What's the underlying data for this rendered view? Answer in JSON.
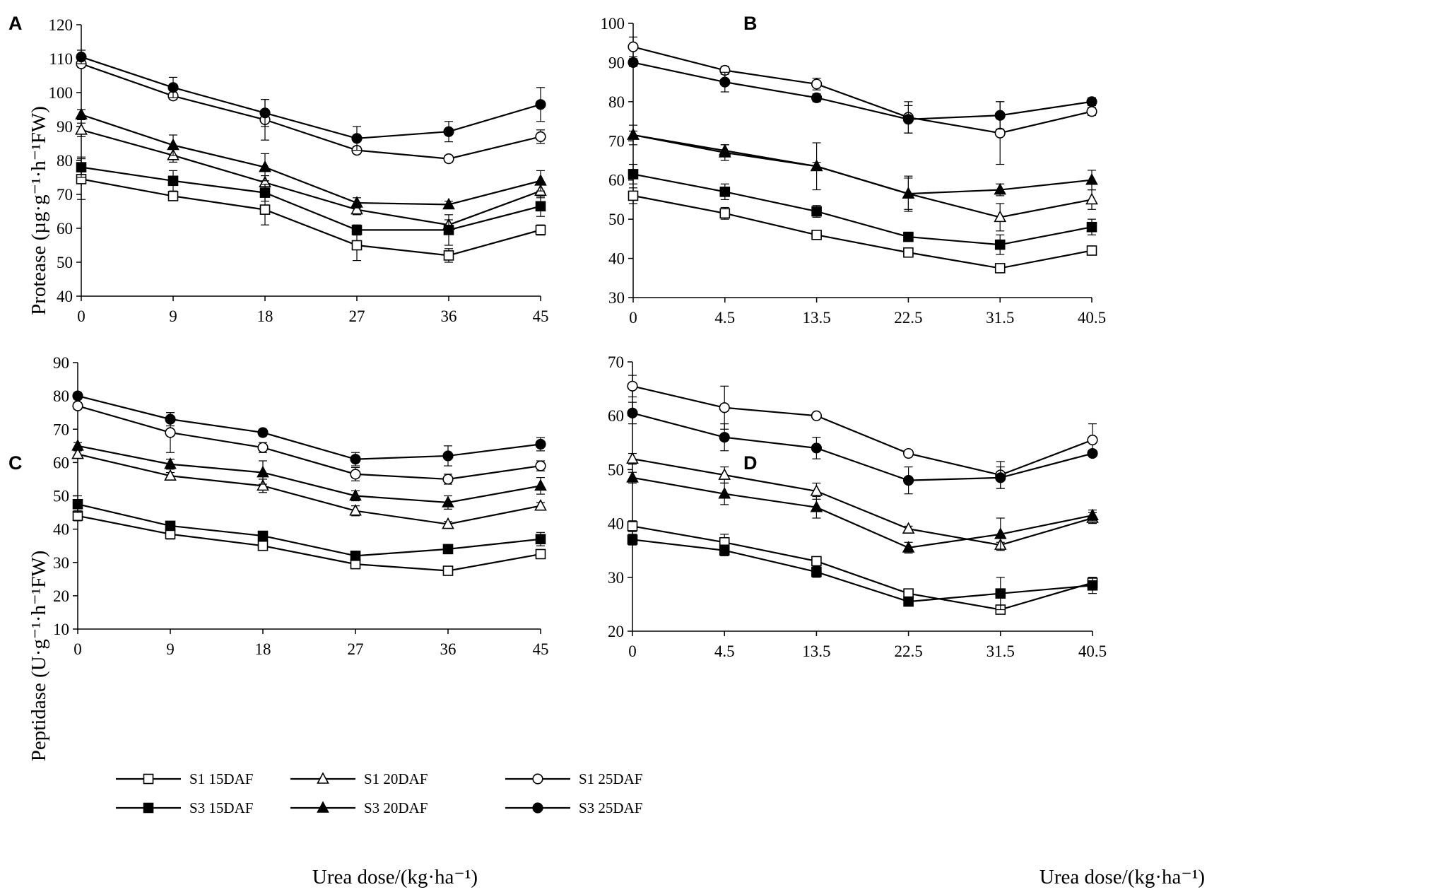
{
  "chart_data": [
    {
      "panel": "A",
      "type": "line",
      "x": [
        0,
        9,
        18,
        27,
        36,
        45
      ],
      "ylim": [
        40,
        120
      ],
      "yticks": [
        40,
        50,
        60,
        70,
        80,
        90,
        100,
        110,
        120
      ],
      "ylabel": "Protease (µg·g⁻¹·h⁻¹FW)",
      "xlabel": "",
      "series": [
        {
          "name": "S1 15DAF",
          "marker": "square",
          "filled": false,
          "values": [
            74.5,
            69.5,
            65.5,
            55.0,
            52.0,
            59.5
          ],
          "errors": [
            6.0,
            1.0,
            4.5,
            4.5,
            2.0,
            1.5
          ]
        },
        {
          "name": "S1 20DAF",
          "marker": "triangle",
          "filled": false,
          "values": [
            89.0,
            81.5,
            73.5,
            65.5,
            61.0,
            71.0
          ],
          "errors": [
            2.0,
            2.0,
            2.0,
            1.5,
            1.5,
            2.0
          ]
        },
        {
          "name": "S1 25DAF",
          "marker": "circle",
          "filled": false,
          "values": [
            108.5,
            99.0,
            92.0,
            83.0,
            80.5,
            87.0
          ],
          "errors": [
            1.0,
            1.0,
            6.0,
            1.0,
            1.0,
            2.0
          ]
        },
        {
          "name": "S3 15DAF",
          "marker": "square",
          "filled": true,
          "values": [
            78.0,
            74.0,
            70.5,
            59.5,
            59.5,
            66.5
          ],
          "errors": [
            3.0,
            3.0,
            2.5,
            1.5,
            4.5,
            3.0
          ]
        },
        {
          "name": "S3 20DAF",
          "marker": "triangle",
          "filled": true,
          "values": [
            93.5,
            84.5,
            78.0,
            67.5,
            67.0,
            74.0
          ],
          "errors": [
            1.5,
            3.0,
            4.0,
            1.5,
            1.0,
            3.0
          ]
        },
        {
          "name": "S3 25DAF",
          "marker": "circle",
          "filled": true,
          "values": [
            110.5,
            101.5,
            94.0,
            86.5,
            88.5,
            96.5
          ],
          "errors": [
            2.0,
            3.0,
            4.0,
            3.5,
            3.0,
            5.0
          ]
        }
      ]
    },
    {
      "panel": "B",
      "type": "line",
      "x": [
        0,
        4.5,
        13.5,
        22.5,
        31.5,
        40.5
      ],
      "ylim": [
        30,
        100
      ],
      "yticks": [
        30,
        40,
        50,
        60,
        70,
        80,
        90,
        100
      ],
      "ylabel": "",
      "xlabel": "",
      "series": [
        {
          "name": "S1 15DAF",
          "marker": "square",
          "filled": false,
          "values": [
            56.0,
            51.5,
            46.0,
            41.5,
            37.5,
            42.0
          ],
          "errors": [
            2.0,
            1.5,
            0.5,
            0.5,
            1.0,
            0.5
          ]
        },
        {
          "name": "S1 20DAF",
          "marker": "triangle",
          "filled": false,
          "values": [
            71.5,
            67.5,
            63.5,
            56.5,
            50.5,
            55.0
          ],
          "errors": [
            1.0,
            1.5,
            6.0,
            4.5,
            3.5,
            2.5
          ]
        },
        {
          "name": "S1 25DAF",
          "marker": "circle",
          "filled": false,
          "values": [
            94.0,
            88.0,
            84.5,
            76.0,
            72.0,
            77.5
          ],
          "errors": [
            2.5,
            1.0,
            1.5,
            4.0,
            8.0,
            1.0
          ]
        },
        {
          "name": "S3 15DAF",
          "marker": "square",
          "filled": true,
          "values": [
            61.5,
            57.0,
            52.0,
            45.5,
            43.5,
            48.0
          ],
          "errors": [
            2.5,
            2.0,
            1.5,
            0.5,
            2.5,
            2.0
          ]
        },
        {
          "name": "S3 20DAF",
          "marker": "triangle",
          "filled": true,
          "values": [
            71.5,
            67.0,
            63.5,
            56.5,
            57.5,
            60.0
          ],
          "errors": [
            2.5,
            2.0,
            1.0,
            4.0,
            1.5,
            2.5
          ]
        },
        {
          "name": "S3 25DAF",
          "marker": "circle",
          "filled": true,
          "values": [
            90.0,
            85.0,
            81.0,
            75.5,
            76.5,
            80.0
          ],
          "errors": [
            1.0,
            2.5,
            1.0,
            3.5,
            3.5,
            1.0
          ]
        }
      ]
    },
    {
      "panel": "C",
      "type": "line",
      "x": [
        0,
        9,
        18,
        27,
        36,
        45
      ],
      "ylim": [
        10,
        90
      ],
      "yticks": [
        10,
        20,
        30,
        40,
        50,
        60,
        70,
        80,
        90
      ],
      "ylabel": "Peptidase (U·g⁻¹·h⁻¹FW)",
      "xlabel": "Urea dose/(kg·ha⁻¹)",
      "series": [
        {
          "name": "S1 15DAF",
          "marker": "square",
          "filled": false,
          "values": [
            44.0,
            38.5,
            35.0,
            29.5,
            27.5,
            32.5
          ],
          "errors": [
            1.5,
            1.5,
            1.0,
            1.0,
            0.8,
            1.0
          ]
        },
        {
          "name": "S1 20DAF",
          "marker": "triangle",
          "filled": false,
          "values": [
            62.5,
            56.0,
            53.0,
            45.5,
            41.5,
            47.0
          ],
          "errors": [
            1.0,
            1.0,
            2.0,
            1.5,
            0.8,
            1.0
          ]
        },
        {
          "name": "S1 25DAF",
          "marker": "circle",
          "filled": false,
          "values": [
            77.0,
            69.0,
            64.5,
            56.5,
            55.0,
            59.0
          ],
          "errors": [
            1.0,
            6.0,
            1.5,
            2.0,
            1.5,
            1.5
          ]
        },
        {
          "name": "S3 15DAF",
          "marker": "square",
          "filled": true,
          "values": [
            47.5,
            41.0,
            38.0,
            32.0,
            34.0,
            37.0
          ],
          "errors": [
            2.5,
            1.0,
            1.0,
            1.0,
            1.0,
            2.0
          ]
        },
        {
          "name": "S3 20DAF",
          "marker": "triangle",
          "filled": true,
          "values": [
            65.0,
            59.5,
            57.0,
            50.0,
            48.0,
            53.0
          ],
          "errors": [
            1.0,
            1.5,
            3.5,
            1.5,
            2.0,
            2.5
          ]
        },
        {
          "name": "S3 25DAF",
          "marker": "circle",
          "filled": true,
          "values": [
            80.0,
            73.0,
            69.0,
            61.0,
            62.0,
            65.5
          ],
          "errors": [
            1.0,
            2.0,
            1.0,
            2.0,
            3.0,
            2.0
          ]
        }
      ]
    },
    {
      "panel": "D",
      "type": "line",
      "x": [
        0,
        4.5,
        13.5,
        22.5,
        31.5,
        40.5
      ],
      "ylim": [
        20,
        70
      ],
      "yticks": [
        20,
        30,
        40,
        50,
        60,
        70
      ],
      "ylabel": "",
      "xlabel": "Urea dose/(kg·ha⁻¹)",
      "series": [
        {
          "name": "S1 15DAF",
          "marker": "square",
          "filled": false,
          "values": [
            39.5,
            36.5,
            33.0,
            27.0,
            24.0,
            29.0
          ],
          "errors": [
            1.0,
            1.5,
            0.5,
            0.5,
            0.5,
            1.0
          ]
        },
        {
          "name": "S1 20DAF",
          "marker": "triangle",
          "filled": false,
          "values": [
            52.0,
            49.0,
            46.0,
            39.0,
            36.0,
            41.0
          ],
          "errors": [
            1.0,
            1.5,
            1.5,
            0.5,
            0.5,
            1.0
          ]
        },
        {
          "name": "S1 25DAF",
          "marker": "circle",
          "filled": false,
          "values": [
            65.5,
            61.5,
            60.0,
            53.0,
            49.0,
            55.5
          ],
          "errors": [
            2.0,
            4.0,
            0.3,
            0.5,
            2.5,
            3.0
          ]
        },
        {
          "name": "S3 15DAF",
          "marker": "square",
          "filled": true,
          "values": [
            37.0,
            35.0,
            31.0,
            25.5,
            27.0,
            28.5
          ],
          "errors": [
            1.0,
            1.0,
            1.0,
            0.3,
            3.0,
            1.5
          ]
        },
        {
          "name": "S3 20DAF",
          "marker": "triangle",
          "filled": true,
          "values": [
            48.5,
            45.5,
            43.0,
            35.5,
            38.0,
            41.5
          ],
          "errors": [
            1.0,
            2.0,
            2.0,
            1.0,
            3.0,
            1.0
          ]
        },
        {
          "name": "S3 25DAF",
          "marker": "circle",
          "filled": true,
          "values": [
            60.5,
            56.0,
            54.0,
            48.0,
            48.5,
            53.0
          ],
          "errors": [
            2.0,
            2.5,
            2.0,
            2.5,
            2.0,
            0.5
          ]
        }
      ]
    }
  ],
  "colors": {
    "line": "#000000",
    "background": "#ffffff"
  }
}
